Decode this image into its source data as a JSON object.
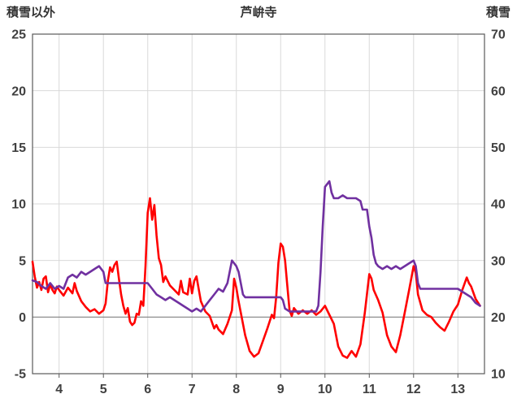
{
  "header": {
    "left_axis_title": "積雪以外",
    "title": "芦峅寺",
    "right_axis_title": "積雪"
  },
  "colors": {
    "grid": "#d9d9d9",
    "zero_line": "#808080",
    "border": "#595959",
    "tick_text": "#404040",
    "red_series": "#ff0000",
    "purple_series": "#7030a0"
  },
  "chart_data": {
    "type": "line",
    "title": "芦峅寺",
    "y_left_label": "積雪以外",
    "y_right_label": "積雪",
    "x_range": [
      3.4,
      13.6
    ],
    "x_ticks": [
      4,
      5,
      6,
      7,
      8,
      9,
      10,
      11,
      12,
      13
    ],
    "y_left_range": [
      -5,
      25
    ],
    "y_left_ticks": [
      25,
      20,
      15,
      10,
      5,
      0,
      -5
    ],
    "y_right_range": [
      10,
      70
    ],
    "y_right_ticks": [
      70,
      60,
      50,
      40,
      30,
      20,
      10
    ],
    "grid": true,
    "legend": "none",
    "series": [
      {
        "name": "積雪以外",
        "axis": "left",
        "color": "#ff0000",
        "points": [
          [
            3.4,
            4.9
          ],
          [
            3.45,
            3.6
          ],
          [
            3.5,
            2.6
          ],
          [
            3.55,
            3.1
          ],
          [
            3.6,
            2.4
          ],
          [
            3.65,
            3.4
          ],
          [
            3.7,
            3.6
          ],
          [
            3.75,
            2.2
          ],
          [
            3.8,
            2.9
          ],
          [
            3.85,
            2.4
          ],
          [
            3.9,
            2.1
          ],
          [
            3.95,
            2.7
          ],
          [
            4.0,
            2.4
          ],
          [
            4.1,
            1.9
          ],
          [
            4.2,
            2.6
          ],
          [
            4.3,
            2.1
          ],
          [
            4.35,
            3.0
          ],
          [
            4.4,
            2.3
          ],
          [
            4.5,
            1.4
          ],
          [
            4.6,
            0.9
          ],
          [
            4.7,
            0.5
          ],
          [
            4.8,
            0.7
          ],
          [
            4.9,
            0.3
          ],
          [
            5.0,
            0.6
          ],
          [
            5.05,
            1.2
          ],
          [
            5.1,
            3.2
          ],
          [
            5.15,
            4.4
          ],
          [
            5.2,
            4.0
          ],
          [
            5.25,
            4.6
          ],
          [
            5.3,
            4.9
          ],
          [
            5.35,
            3.4
          ],
          [
            5.4,
            2.0
          ],
          [
            5.45,
            1.0
          ],
          [
            5.5,
            0.3
          ],
          [
            5.55,
            0.8
          ],
          [
            5.6,
            -0.4
          ],
          [
            5.65,
            -0.7
          ],
          [
            5.7,
            -0.5
          ],
          [
            5.75,
            0.3
          ],
          [
            5.8,
            0.2
          ],
          [
            5.85,
            1.4
          ],
          [
            5.9,
            1.0
          ],
          [
            5.95,
            4.5
          ],
          [
            6.0,
            9.2
          ],
          [
            6.05,
            10.5
          ],
          [
            6.1,
            8.6
          ],
          [
            6.15,
            9.9
          ],
          [
            6.2,
            7.2
          ],
          [
            6.25,
            5.2
          ],
          [
            6.3,
            4.6
          ],
          [
            6.35,
            3.1
          ],
          [
            6.4,
            3.6
          ],
          [
            6.5,
            2.8
          ],
          [
            6.6,
            2.4
          ],
          [
            6.7,
            2.0
          ],
          [
            6.75,
            3.2
          ],
          [
            6.8,
            2.2
          ],
          [
            6.9,
            2.0
          ],
          [
            6.95,
            3.4
          ],
          [
            7.0,
            2.1
          ],
          [
            7.05,
            3.2
          ],
          [
            7.1,
            3.6
          ],
          [
            7.2,
            1.4
          ],
          [
            7.3,
            0.5
          ],
          [
            7.4,
            0.1
          ],
          [
            7.5,
            -1.0
          ],
          [
            7.55,
            -0.7
          ],
          [
            7.6,
            -1.1
          ],
          [
            7.7,
            -1.5
          ],
          [
            7.8,
            -0.6
          ],
          [
            7.9,
            0.6
          ],
          [
            7.95,
            3.4
          ],
          [
            8.0,
            2.6
          ],
          [
            8.05,
            1.4
          ],
          [
            8.1,
            0.4
          ],
          [
            8.2,
            -1.6
          ],
          [
            8.3,
            -3.0
          ],
          [
            8.4,
            -3.5
          ],
          [
            8.5,
            -3.2
          ],
          [
            8.6,
            -2.1
          ],
          [
            8.7,
            -1.0
          ],
          [
            8.8,
            0.2
          ],
          [
            8.85,
            -0.1
          ],
          [
            8.9,
            1.8
          ],
          [
            8.95,
            4.8
          ],
          [
            9.0,
            6.5
          ],
          [
            9.05,
            6.2
          ],
          [
            9.1,
            5.0
          ],
          [
            9.15,
            2.8
          ],
          [
            9.2,
            0.6
          ],
          [
            9.25,
            0.1
          ],
          [
            9.3,
            0.8
          ],
          [
            9.4,
            0.3
          ],
          [
            9.5,
            0.6
          ],
          [
            9.6,
            0.3
          ],
          [
            9.7,
            0.6
          ],
          [
            9.8,
            0.2
          ],
          [
            9.9,
            0.5
          ],
          [
            10.0,
            1.0
          ],
          [
            10.05,
            0.6
          ],
          [
            10.1,
            0.2
          ],
          [
            10.2,
            -0.6
          ],
          [
            10.3,
            -2.6
          ],
          [
            10.4,
            -3.4
          ],
          [
            10.5,
            -3.6
          ],
          [
            10.6,
            -3.0
          ],
          [
            10.7,
            -3.5
          ],
          [
            10.8,
            -2.4
          ],
          [
            10.9,
            0.4
          ],
          [
            11.0,
            3.8
          ],
          [
            11.05,
            3.4
          ],
          [
            11.1,
            2.4
          ],
          [
            11.2,
            1.5
          ],
          [
            11.3,
            0.4
          ],
          [
            11.4,
            -1.6
          ],
          [
            11.5,
            -2.6
          ],
          [
            11.6,
            -3.1
          ],
          [
            11.7,
            -1.6
          ],
          [
            11.8,
            0.4
          ],
          [
            11.9,
            2.4
          ],
          [
            12.0,
            4.5
          ],
          [
            12.05,
            3.9
          ],
          [
            12.1,
            2.0
          ],
          [
            12.2,
            0.6
          ],
          [
            12.3,
            0.2
          ],
          [
            12.4,
            0.0
          ],
          [
            12.5,
            -0.5
          ],
          [
            12.6,
            -0.9
          ],
          [
            12.7,
            -1.2
          ],
          [
            12.8,
            -0.4
          ],
          [
            12.9,
            0.5
          ],
          [
            13.0,
            1.1
          ],
          [
            13.1,
            2.4
          ],
          [
            13.2,
            3.5
          ],
          [
            13.25,
            3.0
          ],
          [
            13.3,
            2.7
          ],
          [
            13.4,
            1.6
          ],
          [
            13.5,
            1.0
          ]
        ]
      },
      {
        "name": "積雪",
        "axis": "right",
        "color": "#7030a0",
        "points": [
          [
            3.4,
            26.5
          ],
          [
            3.5,
            26.2
          ],
          [
            3.6,
            25.5
          ],
          [
            3.7,
            25.0
          ],
          [
            3.8,
            26.0
          ],
          [
            3.9,
            25.0
          ],
          [
            4.0,
            25.5
          ],
          [
            4.1,
            25.0
          ],
          [
            4.2,
            27.0
          ],
          [
            4.3,
            27.5
          ],
          [
            4.4,
            27.0
          ],
          [
            4.5,
            28.0
          ],
          [
            4.6,
            27.5
          ],
          [
            4.7,
            28.0
          ],
          [
            4.8,
            28.5
          ],
          [
            4.9,
            29.0
          ],
          [
            5.0,
            28.0
          ],
          [
            5.05,
            26.0
          ],
          [
            5.2,
            26.0
          ],
          [
            5.4,
            26.0
          ],
          [
            5.6,
            26.0
          ],
          [
            5.8,
            26.0
          ],
          [
            6.0,
            26.0
          ],
          [
            6.1,
            25.0
          ],
          [
            6.2,
            24.0
          ],
          [
            6.3,
            23.5
          ],
          [
            6.4,
            23.0
          ],
          [
            6.5,
            23.5
          ],
          [
            6.6,
            23.0
          ],
          [
            6.7,
            22.5
          ],
          [
            6.8,
            22.0
          ],
          [
            6.9,
            21.5
          ],
          [
            7.0,
            21.0
          ],
          [
            7.1,
            21.5
          ],
          [
            7.2,
            21.0
          ],
          [
            7.3,
            22.0
          ],
          [
            7.4,
            23.0
          ],
          [
            7.5,
            24.0
          ],
          [
            7.6,
            25.0
          ],
          [
            7.7,
            24.5
          ],
          [
            7.8,
            26.0
          ],
          [
            7.9,
            30.0
          ],
          [
            7.95,
            29.5
          ],
          [
            8.0,
            29.0
          ],
          [
            8.05,
            28.0
          ],
          [
            8.1,
            26.0
          ],
          [
            8.15,
            24.0
          ],
          [
            8.2,
            23.5
          ],
          [
            8.4,
            23.5
          ],
          [
            8.6,
            23.5
          ],
          [
            8.8,
            23.5
          ],
          [
            9.0,
            23.5
          ],
          [
            9.05,
            23.0
          ],
          [
            9.1,
            21.5
          ],
          [
            9.2,
            21.0
          ],
          [
            9.4,
            21.0
          ],
          [
            9.6,
            21.0
          ],
          [
            9.8,
            21.0
          ],
          [
            9.85,
            22.0
          ],
          [
            9.9,
            28.0
          ],
          [
            9.95,
            36.0
          ],
          [
            10.0,
            43.0
          ],
          [
            10.05,
            43.5
          ],
          [
            10.1,
            44.0
          ],
          [
            10.15,
            42.0
          ],
          [
            10.2,
            41.0
          ],
          [
            10.3,
            41.0
          ],
          [
            10.4,
            41.5
          ],
          [
            10.5,
            41.0
          ],
          [
            10.6,
            41.0
          ],
          [
            10.7,
            41.0
          ],
          [
            10.8,
            40.5
          ],
          [
            10.85,
            39.0
          ],
          [
            10.95,
            39.0
          ],
          [
            11.0,
            36.0
          ],
          [
            11.05,
            34.0
          ],
          [
            11.1,
            31.0
          ],
          [
            11.15,
            29.5
          ],
          [
            11.2,
            29.0
          ],
          [
            11.3,
            28.5
          ],
          [
            11.4,
            29.0
          ],
          [
            11.5,
            28.5
          ],
          [
            11.6,
            29.0
          ],
          [
            11.7,
            28.5
          ],
          [
            11.8,
            29.0
          ],
          [
            11.9,
            29.5
          ],
          [
            12.0,
            30.0
          ],
          [
            12.05,
            29.0
          ],
          [
            12.1,
            26.0
          ],
          [
            12.15,
            25.0
          ],
          [
            12.3,
            25.0
          ],
          [
            12.5,
            25.0
          ],
          [
            12.7,
            25.0
          ],
          [
            12.9,
            25.0
          ],
          [
            13.0,
            25.0
          ],
          [
            13.1,
            24.5
          ],
          [
            13.2,
            24.0
          ],
          [
            13.3,
            23.5
          ],
          [
            13.4,
            22.5
          ],
          [
            13.5,
            22.0
          ]
        ]
      }
    ]
  }
}
